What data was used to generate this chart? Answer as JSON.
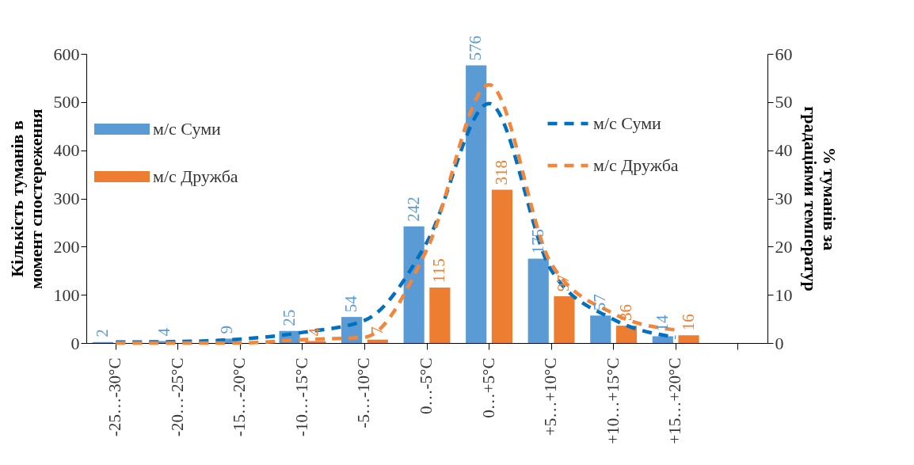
{
  "chart_data": {
    "type": "bar",
    "categories": [
      "-25…-30°C",
      "-20…-25°C",
      "-15…-20°C",
      "-10…-15°C",
      "-5…-10°C",
      "0…-5°C",
      "0…+5°C",
      "+5…+10°C",
      "+10…+15°C",
      "+15…+20°C",
      null
    ],
    "ylabel": "Кількість туманів в момент спостереження",
    "y2label": "% туманів за градаціями температур",
    "ylim": [
      0,
      600
    ],
    "yticks": [
      0,
      100,
      200,
      300,
      400,
      500,
      600
    ],
    "y2lim": [
      0,
      60
    ],
    "y2ticks": [
      0,
      10,
      20,
      30,
      40,
      50,
      60
    ],
    "legend": "top",
    "grid": false,
    "series": [
      {
        "name": "м/с Суми",
        "color": "#5b9bd5",
        "values": [
          2,
          4,
          9,
          25,
          54,
          242,
          576,
          175,
          57,
          14,
          null
        ],
        "value_labels": [
          "2",
          "4",
          "9",
          "25",
          "54",
          "242",
          "576",
          "175",
          "57",
          "14",
          null
        ]
      },
      {
        "name": "м/с Дружба",
        "color": "#ed7d31",
        "values": [
          0,
          0,
          0,
          4,
          7,
          115,
          318,
          97,
          36,
          16,
          null
        ],
        "value_labels": [
          null,
          null,
          null,
          "4",
          "7",
          "115",
          "318",
          "97",
          "36",
          "16",
          null
        ]
      },
      {
        "name": "м/с Суми",
        "type": "line",
        "axis": "y2",
        "line_style": "dashed",
        "color": "#0070c0",
        "values": [
          0.2,
          0.3,
          0.8,
          2.2,
          4.7,
          20.9,
          49.7,
          15.1,
          4.9,
          1.2,
          null
        ]
      },
      {
        "name": "м/с Дружба",
        "type": "line",
        "axis": "y2",
        "line_style": "dashed",
        "color": "#f4863a",
        "values": [
          0,
          0,
          0,
          0.7,
          1.2,
          19.4,
          53.6,
          16.4,
          6.1,
          2.7,
          null
        ]
      }
    ]
  }
}
